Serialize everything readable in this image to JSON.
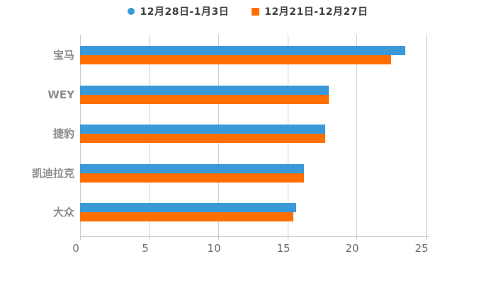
{
  "legend": {
    "items": [
      {
        "label": "12月28日-1月3日",
        "marker": "circle",
        "marker_name": "blue-circle-marker",
        "color": "#3a99d8"
      },
      {
        "label": "12月21日-12月27日",
        "marker": "square",
        "marker_name": "orange-square-marker",
        "color": "#ff6e00"
      }
    ]
  },
  "chart_data": {
    "type": "bar",
    "orientation": "horizontal",
    "title": "",
    "categories": [
      "宝马",
      "WEY",
      "捷豹",
      "凯迪拉克",
      "大众"
    ],
    "series": [
      {
        "name": "12月28日-1月3日",
        "color": "#3a99d8",
        "values": [
          23.5,
          18.0,
          17.7,
          16.2,
          15.6
        ]
      },
      {
        "name": "12月21日-12月27日",
        "color": "#ff6e00",
        "values": [
          22.5,
          18.0,
          17.7,
          16.2,
          15.4
        ]
      }
    ],
    "xlim": [
      0,
      25
    ],
    "xticks": [
      0,
      5,
      10,
      15,
      20,
      25
    ],
    "grid": true,
    "legend_position": "top-center",
    "colors": {
      "gridline": "#cccccc",
      "axis": "#c9c9c9",
      "tick_label": "#6b6b6b",
      "category_label": "#8c8c8c",
      "legend_text": "#404040",
      "background": "#ffffff"
    }
  }
}
